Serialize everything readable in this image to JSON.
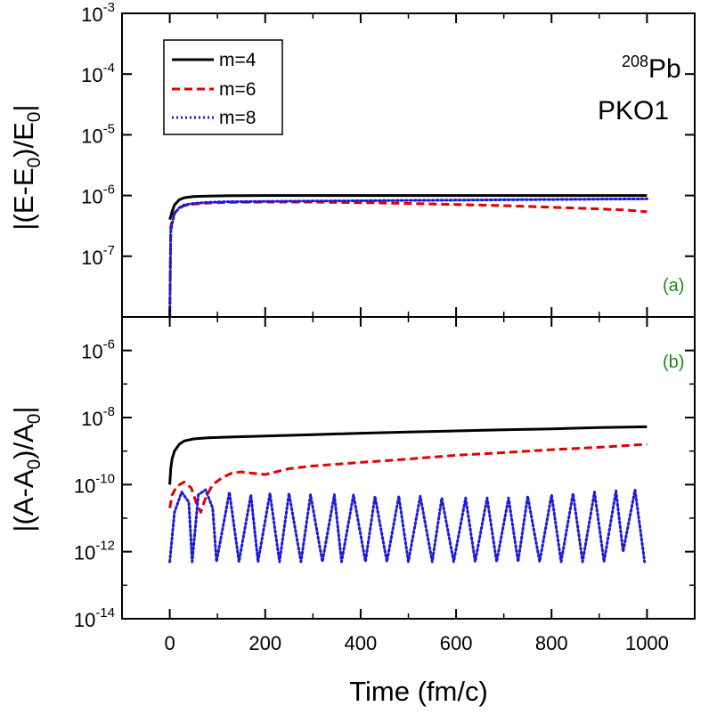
{
  "chart_data": [
    {
      "type": "line",
      "panel": "(a)",
      "ylabel": "|(E-E0)/E0|",
      "ylabel_parts": {
        "pre": "|(E-E",
        "sub1": "0",
        "mid": ")/E",
        "sub2": "0",
        "post": "|"
      },
      "yscale": "log",
      "ylim": [
        1e-08,
        0.001
      ],
      "yticks": [
        {
          "value": 0.001,
          "exp": "-3"
        },
        {
          "value": 0.0001,
          "exp": "-4"
        },
        {
          "value": 1e-05,
          "exp": "-5"
        },
        {
          "value": 1e-06,
          "exp": "-6"
        },
        {
          "value": 1e-07,
          "exp": "-7"
        }
      ],
      "xlim": [
        -100,
        1100
      ],
      "annotation_nucleus": {
        "mass": "208",
        "symbol": "Pb"
      },
      "annotation_model": "PKO1",
      "legend": [
        "m=4",
        "m=6",
        "m=8"
      ],
      "series": [
        {
          "name": "m=4",
          "color": "#000000",
          "style": "solid",
          "x": [
            0,
            2,
            5,
            10,
            20,
            30,
            50,
            80,
            120,
            200,
            300,
            400,
            500,
            600,
            700,
            800,
            900,
            1000
          ],
          "y": [
            4e-07,
            4.5e-07,
            5.5e-07,
            7e-07,
            8.5e-07,
            9.2e-07,
            9.6e-07,
            9.8e-07,
            9.9e-07,
            1e-06,
            1e-06,
            1e-06,
            1e-06,
            1e-06,
            1e-06,
            1e-06,
            1e-06,
            1e-06
          ]
        },
        {
          "name": "m=6",
          "color": "#e00000",
          "style": "dashed",
          "x": [
            0,
            2,
            5,
            10,
            20,
            30,
            50,
            80,
            120,
            200,
            300,
            400,
            500,
            600,
            700,
            800,
            900,
            950,
            1000
          ],
          "y": [
            1e-08,
            3e-07,
            4e-07,
            5.2e-07,
            6.2e-07,
            6.8e-07,
            7.2e-07,
            7.5e-07,
            7.7e-07,
            7.8e-07,
            7.8e-07,
            7.6e-07,
            7.4e-07,
            7.1e-07,
            6.8e-07,
            6.4e-07,
            6e-07,
            5.8e-07,
            5.4e-07
          ]
        },
        {
          "name": "m=8",
          "color": "#1a1adb",
          "style": "dotted",
          "x": [
            0,
            2,
            5,
            10,
            20,
            30,
            50,
            80,
            120,
            200,
            300,
            400,
            500,
            600,
            700,
            800,
            900,
            1000
          ],
          "y": [
            1e-08,
            2.5e-07,
            3.5e-07,
            5e-07,
            6.3e-07,
            7e-07,
            7.4e-07,
            7.7e-07,
            7.9e-07,
            8e-07,
            8.1e-07,
            8.2e-07,
            8.3e-07,
            8.4e-07,
            8.5e-07,
            8.6e-07,
            8.7e-07,
            8.8e-07
          ]
        }
      ]
    },
    {
      "type": "line",
      "panel": "(b)",
      "ylabel": "|(A-A0)/A0|",
      "ylabel_parts": {
        "pre": "|(A-A",
        "sub1": "0",
        "mid": ")/A",
        "sub2": "0",
        "post": "|"
      },
      "yscale": "log",
      "ylim": [
        1e-14,
        1e-05
      ],
      "yticks": [
        {
          "value": 1e-06,
          "exp": "-6"
        },
        {
          "value": 1e-08,
          "exp": "-8"
        },
        {
          "value": 1e-10,
          "exp": "-10"
        },
        {
          "value": 1e-12,
          "exp": "-12"
        },
        {
          "value": 1e-14,
          "exp": "-14"
        }
      ],
      "xlabel": "Time (fm/c)",
      "xlim": [
        -100,
        1100
      ],
      "xticks": [
        0,
        200,
        400,
        600,
        800,
        1000
      ],
      "series": [
        {
          "name": "m=4",
          "color": "#000000",
          "style": "solid",
          "x": [
            0,
            2,
            5,
            10,
            20,
            30,
            50,
            80,
            120,
            200,
            300,
            400,
            500,
            600,
            700,
            800,
            900,
            1000
          ],
          "y": [
            1e-10,
            3e-10,
            6e-10,
            1e-09,
            1.6e-09,
            2e-09,
            2.3e-09,
            2.5e-09,
            2.6e-09,
            2.8e-09,
            3.1e-09,
            3.4e-09,
            3.7e-09,
            4e-09,
            4.3e-09,
            4.6e-09,
            5e-09,
            5.3e-09
          ]
        },
        {
          "name": "m=6",
          "color": "#e00000",
          "style": "dashed",
          "x": [
            0,
            5,
            15,
            30,
            45,
            55,
            65,
            75,
            90,
            110,
            130,
            150,
            170,
            200,
            250,
            300,
            400,
            500,
            600,
            700,
            800,
            900,
            1000
          ],
          "y": [
            2e-11,
            5e-11,
            9e-11,
            1.2e-10,
            8e-11,
            3e-11,
            1.5e-11,
            4e-11,
            1e-10,
            1.6e-10,
            2.2e-10,
            2.4e-10,
            2.2e-10,
            2e-10,
            3e-10,
            3.6e-10,
            4.6e-10,
            5.8e-10,
            7.5e-10,
            9e-10,
            1.1e-09,
            1.3e-09,
            1.6e-09
          ]
        },
        {
          "name": "m=8",
          "color": "#1a1adb",
          "style": "dotted",
          "oscillating": true,
          "x": [
            0,
            10,
            25,
            40,
            47,
            60,
            75,
            90,
            98,
            125,
            145,
            170,
            185,
            210,
            230,
            250,
            275,
            295,
            320,
            345,
            360,
            385,
            410,
            430,
            455,
            480,
            500,
            525,
            550,
            570,
            595,
            620,
            640,
            665,
            685,
            710,
            730,
            750,
            775,
            800,
            820,
            845,
            865,
            890,
            910,
            935,
            950,
            975,
            995
          ],
          "y": [
            5e-13,
            1.5e-11,
            6e-11,
            3e-11,
            5e-13,
            5e-11,
            7e-11,
            2e-11,
            5e-13,
            6e-11,
            5e-13,
            5e-11,
            5e-13,
            5.5e-11,
            5e-13,
            5.5e-11,
            5e-13,
            5e-11,
            5e-13,
            5e-11,
            5e-13,
            5e-11,
            5e-13,
            4.5e-11,
            5e-13,
            4.5e-11,
            5e-13,
            4.5e-11,
            5e-13,
            4e-11,
            5e-13,
            4e-11,
            5e-13,
            4e-11,
            5e-13,
            4e-11,
            5e-13,
            4.5e-11,
            5e-13,
            5e-11,
            5e-13,
            5.5e-11,
            5e-13,
            6e-11,
            5e-13,
            6.5e-11,
            1e-12,
            7e-11,
            5e-13
          ]
        }
      ]
    }
  ]
}
